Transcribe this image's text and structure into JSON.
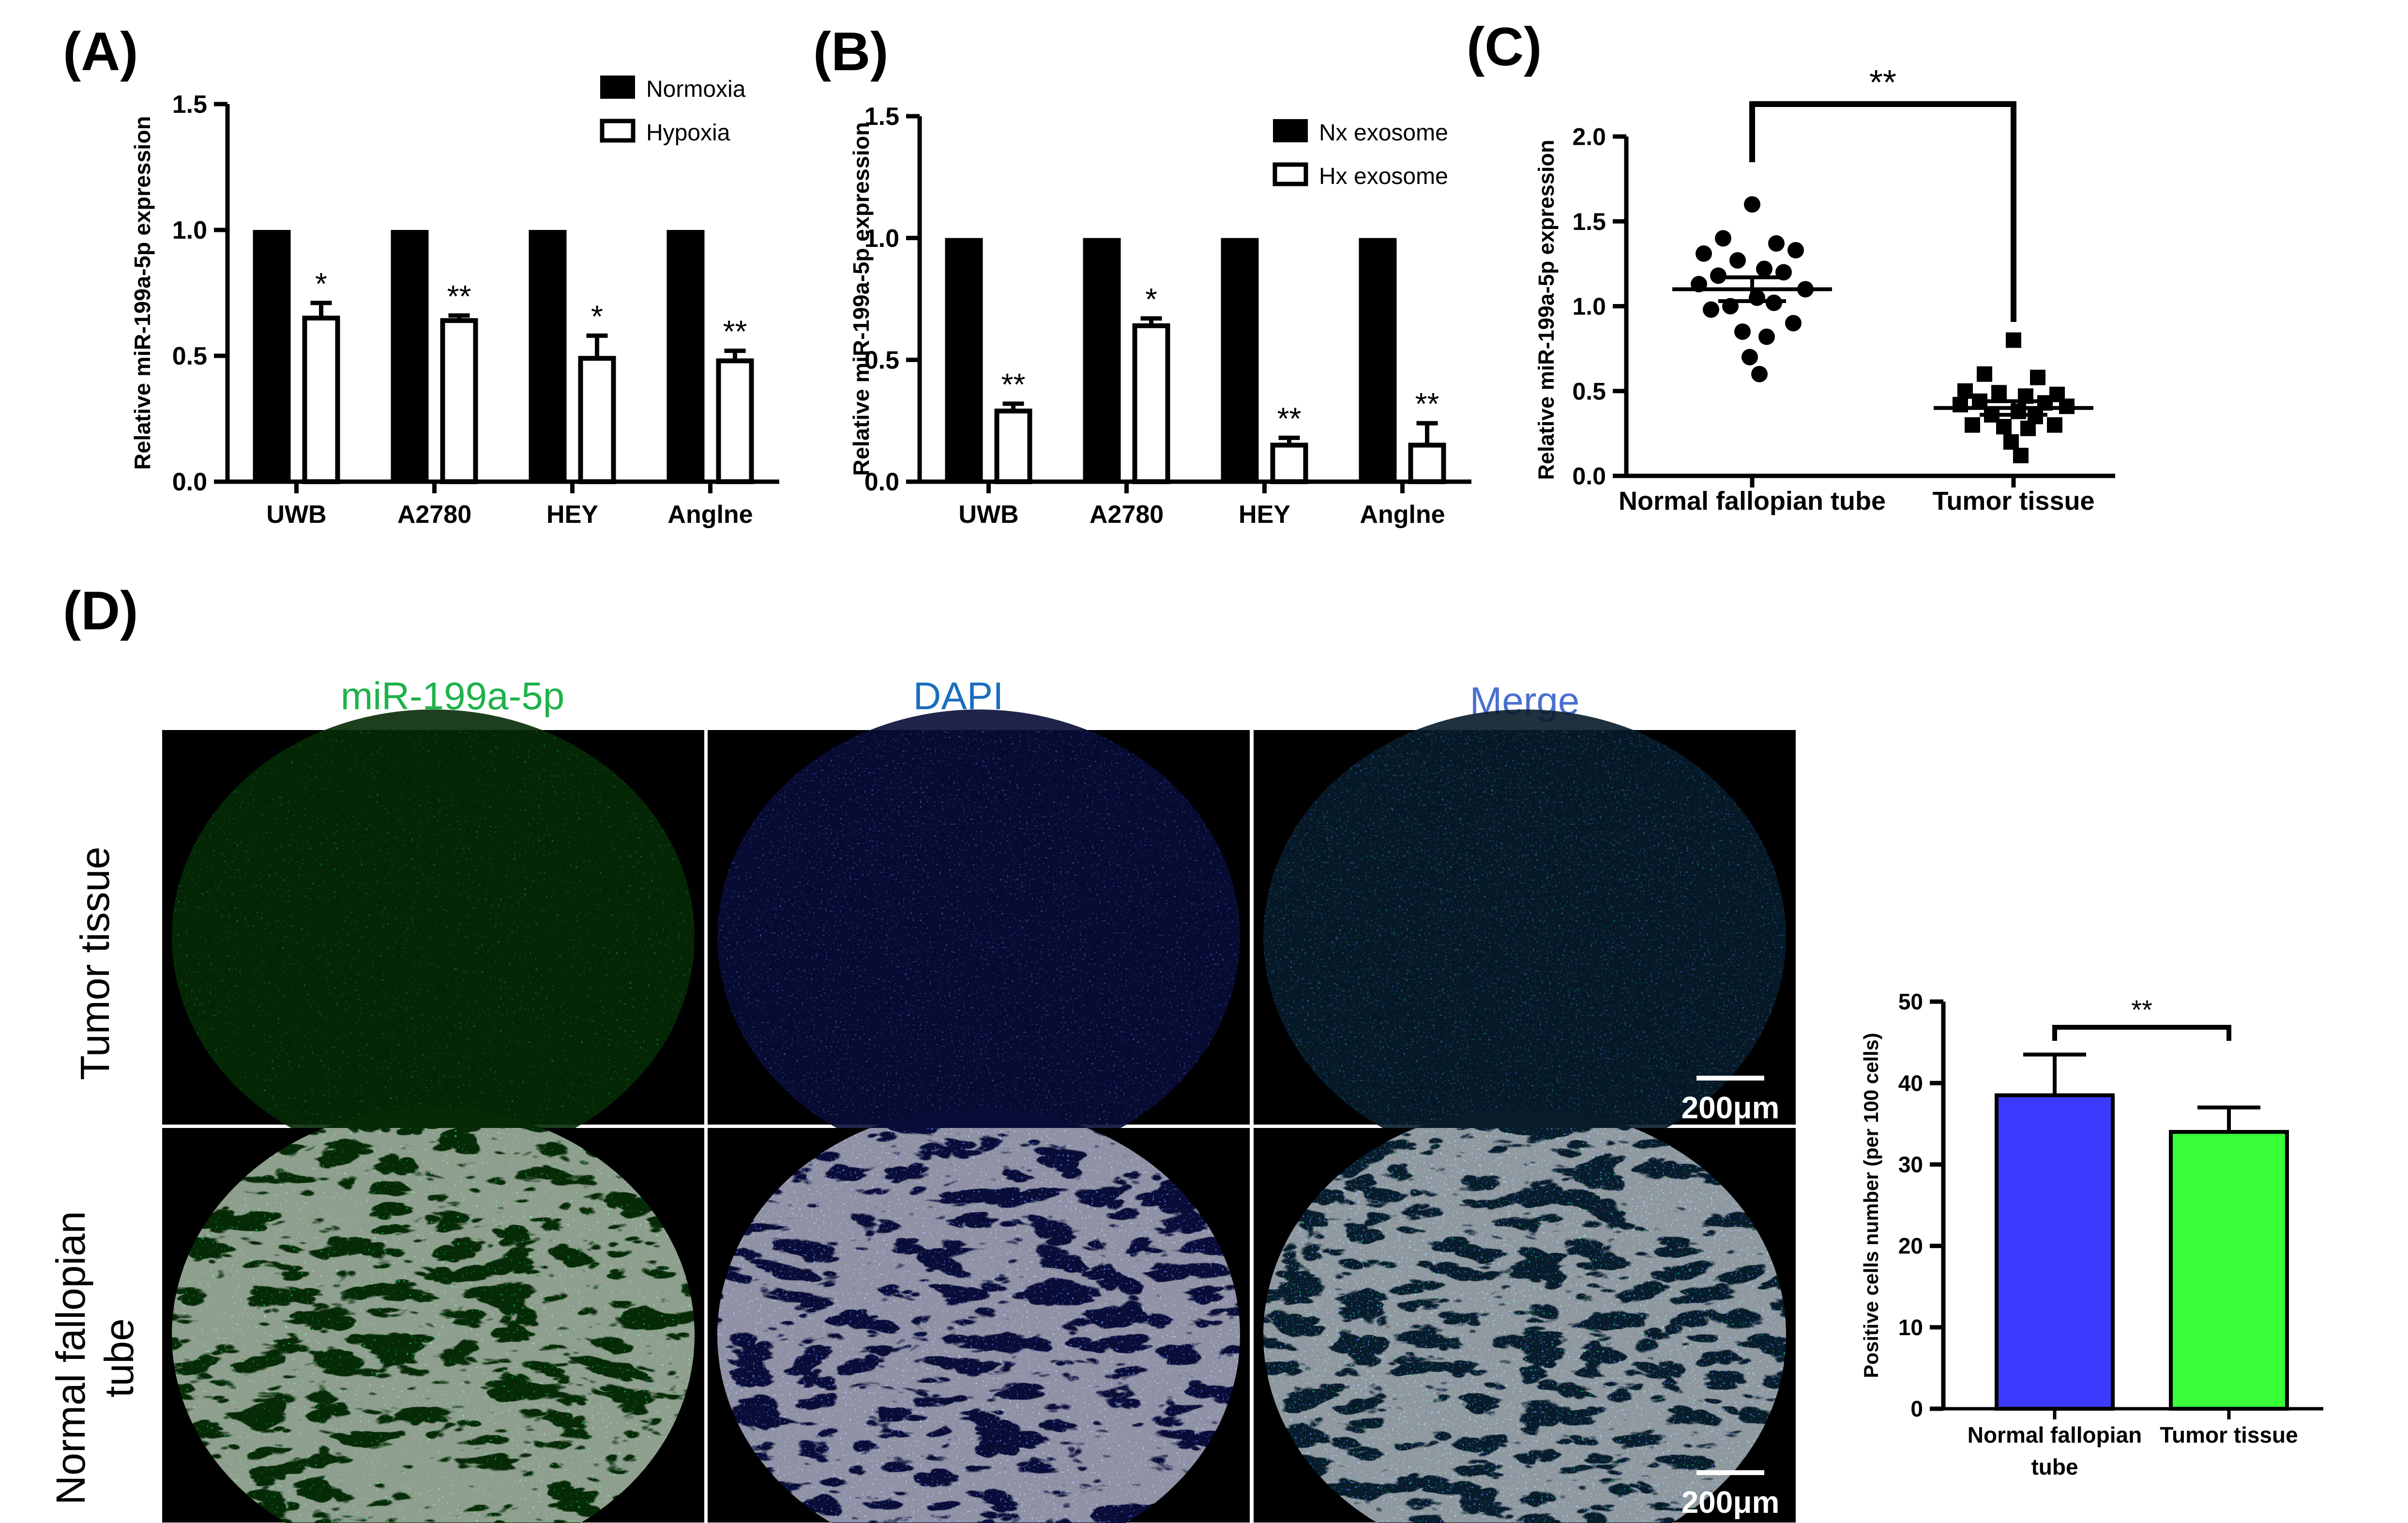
{
  "panel_labels": [
    "(A)",
    "(B)",
    "(C)",
    "(D)"
  ],
  "colors": {
    "normoxia": "#000000",
    "hypoxia": "#ffffff",
    "bar_normal_fallopian": "#3b3bff",
    "bar_tumor_tissue": "#39ff39",
    "stain_green": "#22cc22",
    "stain_blue": "#1f3ccf",
    "title_green": "#1fb24a",
    "title_blue": "#1a6fbf",
    "title_merge": "#4a6fcf"
  },
  "chart_data": [
    {
      "id": "A",
      "type": "bar",
      "ylabel": "Relative miR-199a-5p  expression",
      "xlabel": "",
      "ylim": [
        0,
        1.5
      ],
      "yticks": [
        0.0,
        0.5,
        1.0,
        1.5
      ],
      "ytick_labels": [
        "0.0",
        "0.5",
        "1.0",
        "1.5"
      ],
      "categories": [
        "UWB",
        "A2780",
        "HEY",
        "Anglne"
      ],
      "series": [
        {
          "name": "Normoxia",
          "values": [
            1.0,
            1.0,
            1.0,
            1.0
          ],
          "errors": [
            0,
            0,
            0,
            0
          ],
          "fill": "#000000"
        },
        {
          "name": "Hypoxia",
          "values": [
            0.65,
            0.64,
            0.49,
            0.48
          ],
          "errors": [
            0.06,
            0.02,
            0.09,
            0.04
          ],
          "fill": "#ffffff"
        }
      ],
      "significance": [
        "*",
        "**",
        "*",
        "**"
      ],
      "legend_position": "top-right"
    },
    {
      "id": "B",
      "type": "bar",
      "ylabel": "Relative miR-199a-5p  expression",
      "xlabel": "",
      "ylim": [
        0,
        1.5
      ],
      "yticks": [
        0.0,
        0.5,
        1.0,
        1.5
      ],
      "ytick_labels": [
        "0.0",
        "0.5",
        "1.0",
        "1.5"
      ],
      "categories": [
        "UWB",
        "A2780",
        "HEY",
        "Anglne"
      ],
      "series": [
        {
          "name": "Nx exosome",
          "values": [
            1.0,
            1.0,
            1.0,
            1.0
          ],
          "errors": [
            0,
            0,
            0,
            0
          ],
          "fill": "#000000"
        },
        {
          "name": "Hx exosome",
          "values": [
            0.29,
            0.64,
            0.15,
            0.15
          ],
          "errors": [
            0.03,
            0.03,
            0.03,
            0.09
          ],
          "fill": "#ffffff"
        }
      ],
      "significance": [
        "**",
        "*",
        "**",
        "**"
      ],
      "legend_position": "top-right"
    },
    {
      "id": "C",
      "type": "scatter",
      "ylabel": "Relative miR-199a-5p  expression",
      "xlabel": "",
      "ylim": [
        0,
        2.0
      ],
      "yticks": [
        0.0,
        0.5,
        1.0,
        1.5,
        2.0
      ],
      "ytick_labels": [
        "0.0",
        "0.5",
        "1.0",
        "1.5",
        "2.0"
      ],
      "categories": [
        "Normal fallopian tube",
        "Tumor tissue"
      ],
      "series": [
        {
          "name": "Normal fallopian tube",
          "marker": "circle",
          "mean": 1.1,
          "sem": 0.07,
          "values": [
            1.6,
            1.4,
            1.37,
            1.31,
            1.33,
            1.27,
            1.22,
            1.18,
            1.2,
            1.13,
            1.1,
            1.05,
            1.0,
            1.02,
            0.98,
            0.9,
            0.85,
            0.82,
            0.7,
            0.6
          ]
        },
        {
          "name": "Tumor tissue",
          "marker": "square",
          "mean": 0.4,
          "sem": 0.04,
          "values": [
            0.8,
            0.6,
            0.58,
            0.5,
            0.48,
            0.49,
            0.47,
            0.44,
            0.43,
            0.42,
            0.41,
            0.38,
            0.36,
            0.35,
            0.3,
            0.3,
            0.29,
            0.28,
            0.2,
            0.12
          ]
        }
      ],
      "significance": "**"
    },
    {
      "id": "D-bar",
      "type": "bar",
      "ylabel": "Positive cells number (per 100 cells)",
      "xlabel": "",
      "ylim": [
        0,
        50
      ],
      "yticks": [
        0,
        10,
        20,
        30,
        40,
        50
      ],
      "ytick_labels": [
        "0",
        "10",
        "20",
        "30",
        "40",
        "50"
      ],
      "categories": [
        [
          "Normal fallopian",
          "tube"
        ],
        [
          "Tumor tissue"
        ]
      ],
      "values": [
        38.5,
        34.0
      ],
      "errors": [
        5.0,
        3.0
      ],
      "significance": "**"
    }
  ],
  "micrographs": {
    "column_titles": [
      "miR-199a-5p",
      "DAPI",
      "Merge"
    ],
    "row_labels": [
      [
        "Tumor tissue"
      ],
      [
        "Normal fallopian",
        "tube"
      ]
    ],
    "scale_bar_label": "200μm",
    "cells": [
      {
        "row": "tumor",
        "stain": "green"
      },
      {
        "row": "tumor",
        "stain": "blue"
      },
      {
        "row": "tumor",
        "stain": "merge"
      },
      {
        "row": "normal",
        "stain": "green"
      },
      {
        "row": "normal",
        "stain": "blue"
      },
      {
        "row": "normal",
        "stain": "merge"
      }
    ]
  }
}
